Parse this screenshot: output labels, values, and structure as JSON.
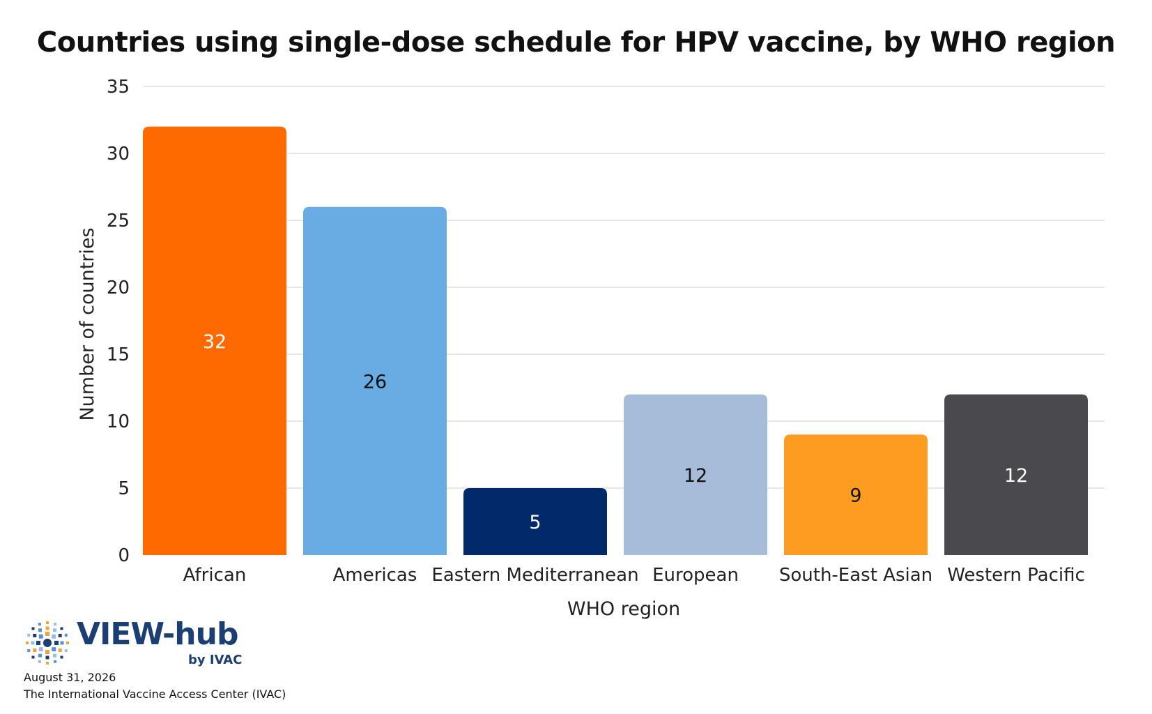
{
  "chart_data": {
    "type": "bar",
    "title": "Countries using single-dose schedule for HPV vaccine, by WHO region",
    "xlabel": "WHO region",
    "ylabel": "Number of countries",
    "categories": [
      "African",
      "Americas",
      "Eastern Mediterranean",
      "European",
      "South-East Asian",
      "Western Pacific"
    ],
    "values": [
      32,
      26,
      5,
      12,
      9,
      12
    ],
    "bar_colors": [
      "#ff6a00",
      "#69ace4",
      "#022a6b",
      "#a7bcd8",
      "#fd9c21",
      "#4a494e"
    ],
    "label_colors": [
      "#ffffff",
      "#111111",
      "#ffffff",
      "#111111",
      "#111111",
      "#ffffff"
    ],
    "yticks": [
      0,
      5,
      10,
      15,
      20,
      25,
      30,
      35
    ],
    "ylim": [
      0,
      35
    ],
    "grid": true,
    "legend": "none"
  },
  "branding": {
    "logo_text": "VIEW-hub",
    "logo_sub": "by IVAC"
  },
  "footer": {
    "date": "August 31, 2026",
    "source": "The International Vaccine Access Center (IVAC)"
  }
}
